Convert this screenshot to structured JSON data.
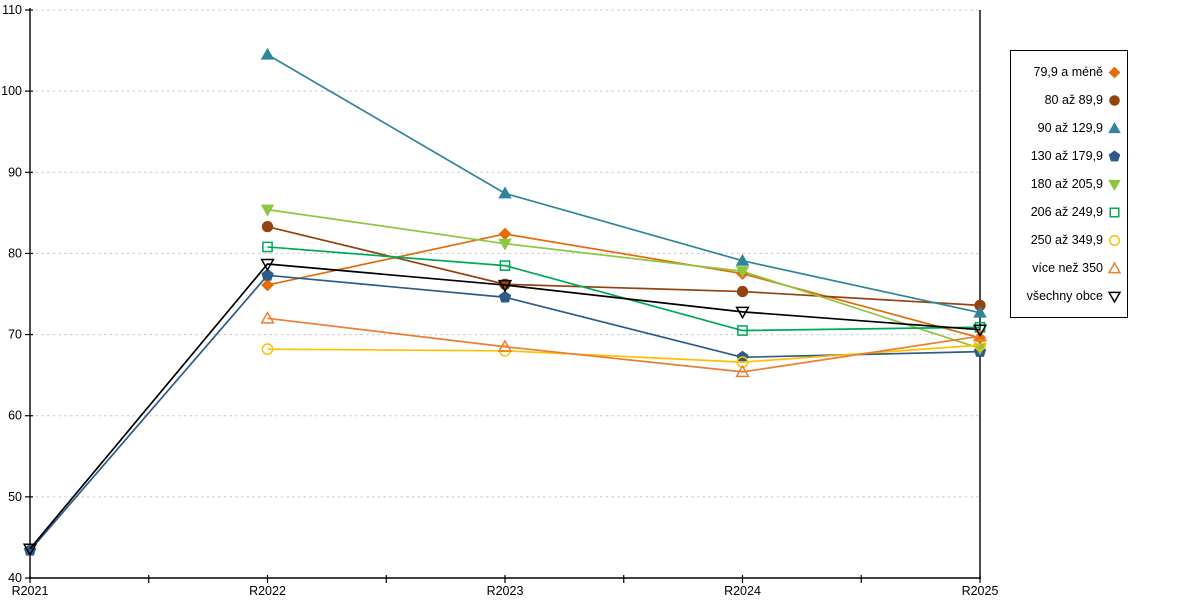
{
  "chart_data": {
    "type": "line",
    "title": "",
    "xlabel": "",
    "ylabel": "",
    "categories": [
      "R2021",
      "R2022",
      "R2023",
      "R2024",
      "R2025"
    ],
    "ylim": [
      40,
      110
    ],
    "y_ticks": [
      40,
      50,
      60,
      70,
      80,
      90,
      100,
      110
    ],
    "grid": "horizontal-dashed",
    "legend_position": "right",
    "series": [
      {
        "name": "79,9 a méně",
        "color": "#E36C09",
        "marker": "diamond",
        "marker_style": "filled",
        "values": [
          null,
          76.1,
          82.4,
          77.5,
          69.6
        ]
      },
      {
        "name": "80 až 89,9",
        "color": "#93430D",
        "marker": "circle",
        "marker_style": "filled",
        "values": [
          null,
          83.3,
          76.2,
          75.3,
          73.6
        ]
      },
      {
        "name": "90 až 129,9",
        "color": "#31849B",
        "marker": "triangle-up",
        "marker_style": "filled",
        "values": [
          null,
          104.5,
          87.4,
          79.1,
          72.7
        ]
      },
      {
        "name": "130 až 179,9",
        "color": "#2E5B88",
        "marker": "pentagon",
        "marker_style": "filled",
        "values": [
          43.4,
          77.3,
          74.6,
          67.2,
          67.9
        ]
      },
      {
        "name": "180 až 205,9",
        "color": "#8DC63F",
        "marker": "triangle-down",
        "marker_style": "filled",
        "values": [
          null,
          85.4,
          81.2,
          77.8,
          68.3
        ]
      },
      {
        "name": "206 až 249,9",
        "color": "#00A859",
        "marker": "square",
        "marker_style": "open",
        "values": [
          null,
          80.8,
          78.5,
          70.5,
          70.9
        ]
      },
      {
        "name": "250 až 349,9",
        "color": "#FFC000",
        "marker": "circle",
        "marker_style": "open",
        "values": [
          null,
          68.2,
          68.0,
          66.6,
          68.7
        ]
      },
      {
        "name": "více než 350",
        "color": "#ED7D31",
        "marker": "triangle-up",
        "marker_style": "open",
        "values": [
          null,
          72.0,
          68.5,
          65.4,
          69.8
        ]
      },
      {
        "name": "všechny obce",
        "color": "#000000",
        "marker": "triangle-down",
        "marker_style": "open",
        "values": [
          43.6,
          78.7,
          76.1,
          72.8,
          70.6
        ]
      }
    ]
  },
  "colors": {
    "background": "#FFFFFF",
    "grid": "#C8C8C8",
    "axis": "#000000"
  }
}
